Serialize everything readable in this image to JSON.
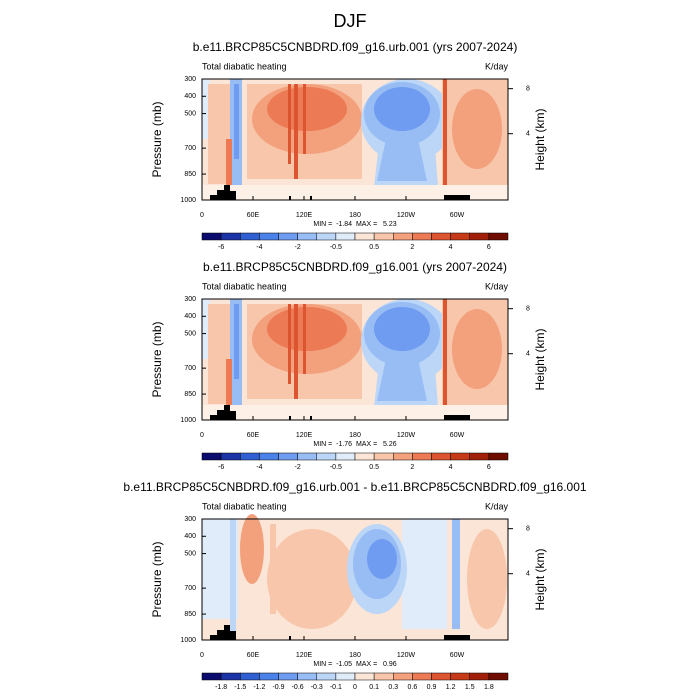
{
  "title": "DJF",
  "panels": [
    {
      "title": "b.e11.BRCP85C5CNBDRD.f09_g16.urb.001 (yrs 2007-2024)",
      "left_label": "Total diabatic heating",
      "right_label": "K/day",
      "ylabel": "Pressure (mb)",
      "y2label": "Height (km)",
      "ylim": [
        300,
        1000
      ],
      "yticks": [
        300,
        400,
        500,
        700,
        850,
        1000
      ],
      "y2ticks": [
        8,
        4
      ],
      "xlim": [
        0,
        360
      ],
      "xticks": [
        0,
        {
          "value": 60,
          "label": "60E"
        },
        {
          "value": 120,
          "label": "120E"
        },
        180,
        {
          "value": 240,
          "label": "120W"
        },
        {
          "value": 300,
          "label": "60W"
        }
      ],
      "stats": "MIN =  -1.84  MAX =   5.23",
      "colorbar": {
        "boundaries": [
          -6,
          null,
          -4,
          null,
          -2,
          null,
          -0.5,
          null,
          0.5,
          null,
          2,
          null,
          4,
          null,
          6
        ],
        "colors": [
          "#0c0c6e",
          "#1c33a6",
          "#2f5fd0",
          "#4b82e8",
          "#6f9cf0",
          "#98bdf5",
          "#bcd6f7",
          "#e0ecfa",
          "#fbe5d6",
          "#f8c7ab",
          "#f3a07d",
          "#ec7a55",
          "#dd5530",
          "#c53a18",
          "#a0200a",
          "#6e0c00"
        ]
      }
    },
    {
      "title": "b.e11.BRCP85C5CNBDRD.f09_g16.001 (yrs 2007-2024)",
      "left_label": "Total diabatic heating",
      "right_label": "K/day",
      "ylabel": "Pressure (mb)",
      "y2label": "Height (km)",
      "ylim": [
        300,
        1000
      ],
      "yticks": [
        300,
        400,
        500,
        700,
        850,
        1000
      ],
      "y2ticks": [
        8,
        4
      ],
      "xlim": [
        0,
        360
      ],
      "xticks": [
        0,
        {
          "value": 60,
          "label": "60E"
        },
        {
          "value": 120,
          "label": "120E"
        },
        180,
        {
          "value": 240,
          "label": "120W"
        },
        {
          "value": 300,
          "label": "60W"
        }
      ],
      "stats": "MIN =  -1.76  MAX =   5.26",
      "colorbar": {
        "boundaries": [
          -6,
          null,
          -4,
          null,
          -2,
          null,
          -0.5,
          null,
          0.5,
          null,
          2,
          null,
          4,
          null,
          6
        ],
        "colors": [
          "#0c0c6e",
          "#1c33a6",
          "#2f5fd0",
          "#4b82e8",
          "#6f9cf0",
          "#98bdf5",
          "#bcd6f7",
          "#e0ecfa",
          "#fbe5d6",
          "#f8c7ab",
          "#f3a07d",
          "#ec7a55",
          "#dd5530",
          "#c53a18",
          "#a0200a",
          "#6e0c00"
        ]
      }
    },
    {
      "title": "b.e11.BRCP85C5CNBDRD.f09_g16.urb.001 - b.e11.BRCP85C5CNBDRD.f09_g16.001",
      "left_label": "Total diabatic heating",
      "right_label": "K/day",
      "ylabel": "Pressure (mb)",
      "y2label": "Height (km)",
      "ylim": [
        300,
        1000
      ],
      "yticks": [
        300,
        400,
        500,
        700,
        850,
        1000
      ],
      "y2ticks": [
        8,
        4
      ],
      "xlim": [
        0,
        360
      ],
      "xticks": [
        0,
        {
          "value": 60,
          "label": "60E"
        },
        {
          "value": 120,
          "label": "120E"
        },
        180,
        {
          "value": 240,
          "label": "120W"
        },
        {
          "value": 300,
          "label": "60W"
        }
      ],
      "stats": "MIN =  -1.05  MAX =   0.96",
      "colorbar": {
        "boundaries": [
          -1.8,
          -1.5,
          -1.2,
          -0.9,
          -0.6,
          -0.3,
          -0.1,
          0,
          0.1,
          0.3,
          0.6,
          0.9,
          1.2,
          1.5,
          1.8
        ],
        "colors": [
          "#0c0c6e",
          "#1c33a6",
          "#2f5fd0",
          "#4b82e8",
          "#6f9cf0",
          "#98bdf5",
          "#bcd6f7",
          "#e0ecfa",
          "#fbe5d6",
          "#f8c7ab",
          "#f3a07d",
          "#ec7a55",
          "#dd5530",
          "#c53a18",
          "#a0200a",
          "#6e0c00"
        ]
      }
    }
  ]
}
